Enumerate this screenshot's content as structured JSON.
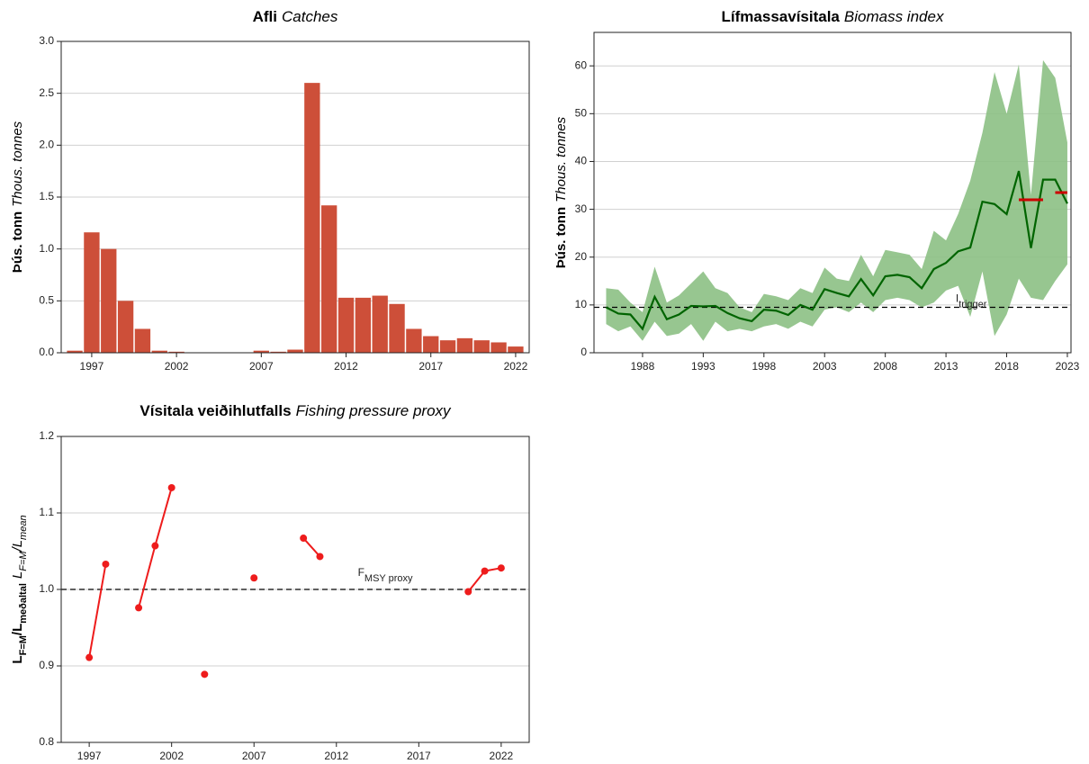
{
  "chart_data": [
    {
      "type": "bar",
      "title": "Afli",
      "title_en": "Catches",
      "ylabel": "Þús. tonn",
      "ylabel_en": "Thous. tonnes",
      "color": "#cd4f39",
      "x": [
        1996,
        1997,
        1998,
        1999,
        2000,
        2001,
        2002,
        2003,
        2004,
        2005,
        2006,
        2007,
        2008,
        2009,
        2010,
        2011,
        2012,
        2013,
        2014,
        2015,
        2016,
        2017,
        2018,
        2019,
        2020,
        2021,
        2022
      ],
      "values": [
        0.02,
        1.16,
        1.0,
        0.5,
        0.23,
        0.02,
        0.01,
        0,
        0,
        0,
        0,
        0.02,
        0.01,
        0.03,
        2.6,
        1.42,
        0.53,
        0.53,
        0.55,
        0.47,
        0.23,
        0.16,
        0.12,
        0.14,
        0.12,
        0.1,
        0.06
      ],
      "xlim": [
        1995.2,
        2022.8
      ],
      "xticks": [
        1997,
        2002,
        2007,
        2012,
        2017,
        2022
      ],
      "ylim": [
        0,
        3
      ],
      "yticks": [
        {
          "value": 0,
          "label": "0.0"
        },
        {
          "value": 0.5,
          "label": "0.5"
        },
        {
          "value": 1,
          "label": "1.0"
        },
        {
          "value": 1.5,
          "label": "1.5"
        },
        {
          "value": 2,
          "label": "2.0"
        },
        {
          "value": 2.5,
          "label": "2.5"
        },
        {
          "value": 3,
          "label": "3.0"
        }
      ],
      "grid": true
    },
    {
      "type": "line",
      "title": "Lífmassavísitala",
      "title_en": "Biomass index",
      "ylabel": "Þús. tonn",
      "ylabel_en": "Thous. tonnes",
      "color": "#006400",
      "band_color": "#8cc084",
      "x": [
        1985,
        1986,
        1987,
        1988,
        1989,
        1990,
        1991,
        1992,
        1993,
        1994,
        1995,
        1996,
        1997,
        1998,
        1999,
        2000,
        2001,
        2002,
        2003,
        2004,
        2005,
        2006,
        2007,
        2008,
        2009,
        2010,
        2011,
        2012,
        2013,
        2014,
        2015,
        2016,
        2017,
        2018,
        2019,
        2020,
        2021,
        2022,
        2023
      ],
      "values": [
        9.5,
        8.2,
        8.0,
        5.0,
        11.7,
        7.0,
        8.0,
        9.8,
        9.7,
        9.8,
        8.3,
        7.2,
        6.6,
        9.0,
        8.8,
        7.9,
        10.0,
        9.0,
        13.3,
        12.5,
        11.8,
        15.4,
        12.0,
        16.0,
        16.3,
        15.8,
        13.5,
        17.5,
        18.8,
        21.2,
        22.0,
        31.6,
        31.1,
        29.0,
        38.0,
        21.9,
        36.2,
        36.2,
        31.2
      ],
      "upper": [
        13.5,
        13.2,
        10.5,
        8.5,
        18,
        10.5,
        12,
        14.5,
        17,
        13.5,
        12.5,
        9.5,
        8.5,
        12.3,
        11.8,
        11,
        13.5,
        12.5,
        17.8,
        15.5,
        15,
        20.5,
        16,
        21.5,
        21,
        20.5,
        17.5,
        25.5,
        23.5,
        29,
        36,
        46,
        58.7,
        50,
        60.3,
        33,
        61.2,
        57.5,
        44
      ],
      "lower": [
        6,
        4.5,
        5.5,
        2.5,
        6.5,
        3.5,
        4,
        6,
        2.5,
        6.5,
        4.5,
        5,
        4.5,
        5.5,
        6,
        5,
        6.5,
        5.5,
        9,
        9.5,
        8.5,
        10.5,
        8.5,
        11,
        11.5,
        11,
        9.5,
        10.5,
        13,
        14,
        7.5,
        17,
        3.5,
        8,
        15.5,
        11.5,
        11,
        15,
        18.5
      ],
      "reference": {
        "value": 9.5,
        "label": "I",
        "label_sub": "trigger"
      },
      "segments_color": "#cc0000",
      "segments": [
        {
          "x": [
            2019,
            2021
          ],
          "value": 32
        },
        {
          "x": [
            2022,
            2023
          ],
          "value": 33.5
        }
      ],
      "xlim": [
        1984,
        2023.3
      ],
      "xticks": [
        1988,
        1993,
        1998,
        2003,
        2008,
        2013,
        2018,
        2023
      ],
      "ylim": [
        0,
        67
      ],
      "yticks": [
        0,
        10,
        20,
        30,
        40,
        50,
        60
      ],
      "grid": true
    },
    {
      "type": "scatter",
      "title": "Vísitala veiðihlutfalls",
      "title_en": "Fishing pressure proxy",
      "ylabel_parts": [
        "L",
        "F=M",
        "/L",
        "meðaltal",
        "L",
        "F=M",
        "/L",
        "mean"
      ],
      "color": "#ee1c1c",
      "x": [
        1997,
        1998,
        1999,
        2000,
        2001,
        2002,
        2003,
        2004,
        2005,
        2006,
        2007,
        2008,
        2009,
        2010,
        2011,
        2012,
        2013,
        2014,
        2015,
        2016,
        2017,
        2018,
        2019,
        2020,
        2021,
        2022
      ],
      "values": [
        0.911,
        1.033,
        null,
        0.976,
        1.057,
        1.133,
        null,
        0.889,
        null,
        null,
        1.015,
        null,
        null,
        1.067,
        1.043,
        null,
        null,
        null,
        null,
        null,
        null,
        null,
        null,
        0.997,
        1.024,
        1.028
      ],
      "reference": {
        "value": 1,
        "label": "F",
        "label_sub": "MSY proxy"
      },
      "xlim": [
        1995.3,
        2023.7
      ],
      "xticks": [
        1997,
        2002,
        2007,
        2012,
        2017,
        2022
      ],
      "ylim": [
        0.8,
        1.2
      ],
      "yticks": [
        {
          "value": 0.8,
          "label": "0.8"
        },
        {
          "value": 0.9,
          "label": "0.9"
        },
        {
          "value": 1,
          "label": "1.0"
        },
        {
          "value": 1.1,
          "label": "1.1"
        },
        {
          "value": 1.2,
          "label": "1.2"
        }
      ],
      "grid": true
    }
  ]
}
